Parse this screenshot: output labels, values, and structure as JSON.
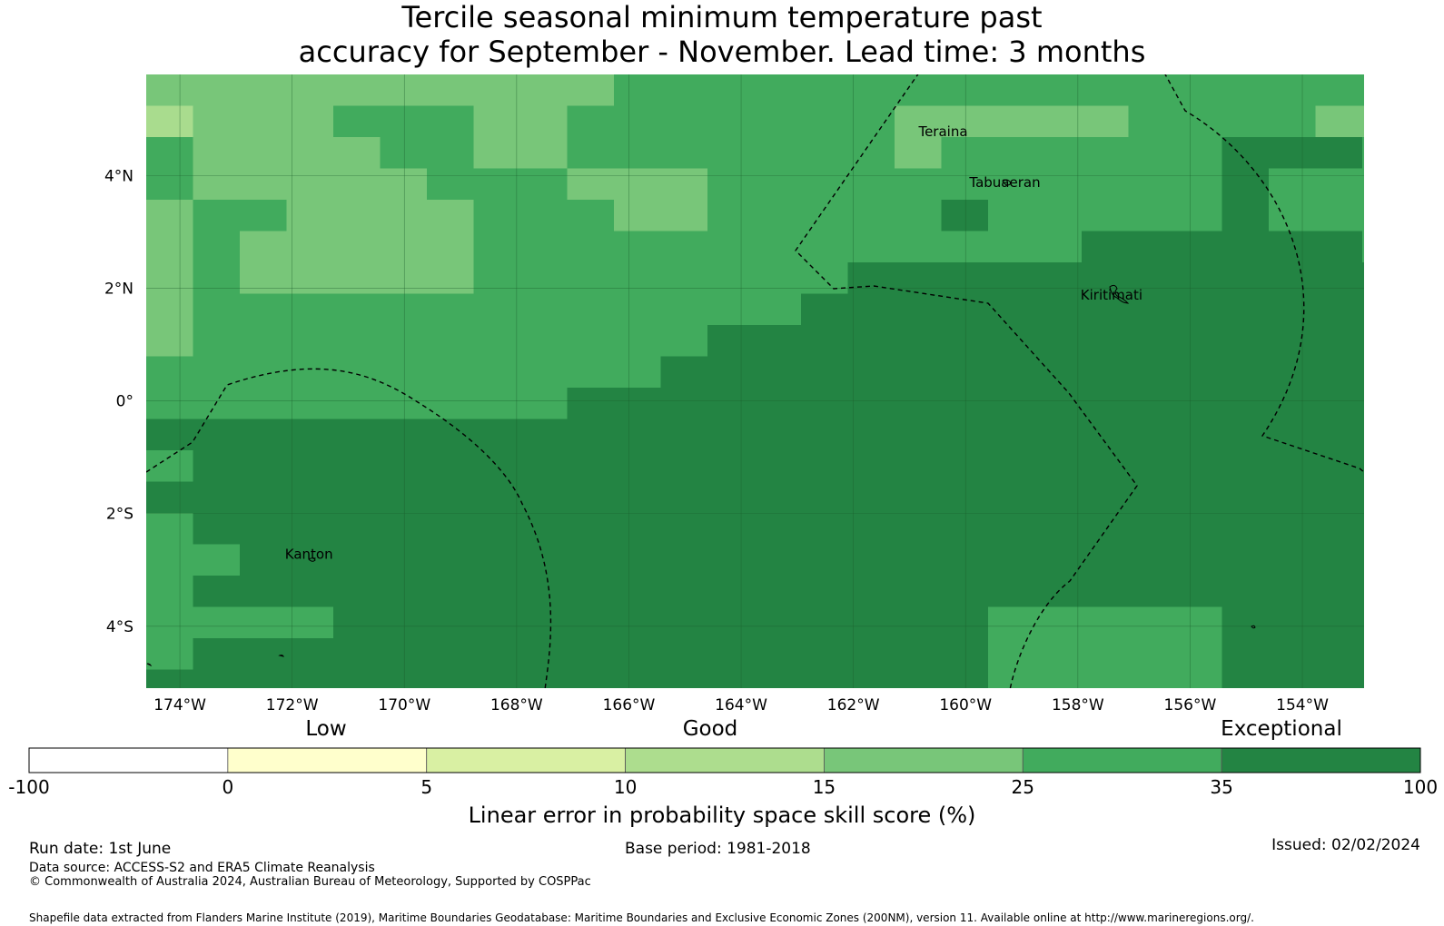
{
  "title": {
    "line1": "Tercile seasonal minimum temperature past",
    "line2": "accuracy for September - November. Lead time: 3 months"
  },
  "map": {
    "lon_range": [
      -174.6,
      -152.9
    ],
    "lat_range": [
      -5.1,
      5.8
    ],
    "lon_ticks": [
      {
        "value": -174,
        "label": "174°W"
      },
      {
        "value": -172,
        "label": "172°W"
      },
      {
        "value": -170,
        "label": "170°W"
      },
      {
        "value": -168,
        "label": "168°W"
      },
      {
        "value": -166,
        "label": "166°W"
      },
      {
        "value": -164,
        "label": "164°W"
      },
      {
        "value": -162,
        "label": "162°W"
      },
      {
        "value": -160,
        "label": "160°W"
      },
      {
        "value": -158,
        "label": "158°W"
      },
      {
        "value": -156,
        "label": "156°W"
      },
      {
        "value": -154,
        "label": "154°W"
      }
    ],
    "lat_ticks": [
      {
        "value": 4,
        "label": "4°N"
      },
      {
        "value": 2,
        "label": "2°N"
      },
      {
        "value": 0,
        "label": "0°"
      },
      {
        "value": -2,
        "label": "2°S"
      },
      {
        "value": -4,
        "label": "4°S"
      }
    ],
    "places": [
      {
        "name": "Teraina",
        "label": "Teraina",
        "lon": -160.4,
        "lat": 4.7
      },
      {
        "name": "Tabuaeran",
        "label": "Tabuaeran",
        "lon": -159.3,
        "lat": 3.8
      },
      {
        "name": "Kiritimati",
        "label": "Kiritimati",
        "lon": -157.4,
        "lat": 1.8
      },
      {
        "name": "Kanton",
        "label": "Kanton",
        "lon": -171.7,
        "lat": -2.8
      }
    ],
    "grid_note_colors": [
      "#a9dc8e",
      "#78c679",
      "#41ab5d",
      "#238443"
    ]
  },
  "colorbar": {
    "headers": [
      "Low",
      "Good",
      "Exceptional"
    ],
    "ticks": [
      "-100",
      "0",
      "5",
      "10",
      "15",
      "25",
      "35",
      "100"
    ],
    "colors": [
      "#ffffff",
      "#ffffcc",
      "#d9f0a3",
      "#addd8e",
      "#78c679",
      "#41ab5d",
      "#238443"
    ],
    "title": "Linear error in probability space skill score (%)"
  },
  "footer": {
    "run_date": "Run date: 1st June",
    "base_period": "Base period: 1981-2018",
    "issued": "Issued: 02/02/2024",
    "data_source": "Data source: ACCESS-S2 and ERA5 Climate Reanalysis",
    "copyright": "© Commonwealth of Australia 2024, Australian Bureau of Meteorology, Supported by COSPPac",
    "shapefile": "Shapefile data extracted from Flanders Marine Institute (2019), Maritime Boundaries Geodatabase: Maritime Boundaries and Exclusive Economic Zones (200NM), version 11. Available online at http://www.marineregions.org/."
  }
}
